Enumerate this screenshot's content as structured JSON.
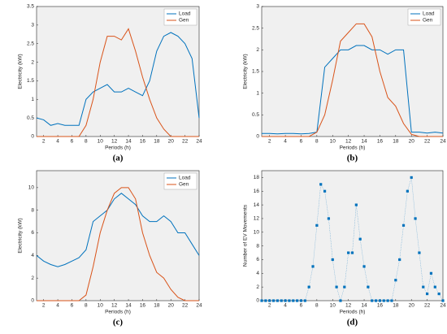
{
  "chart_data": [
    {
      "type": "line",
      "caption": "(a)",
      "ylabel": "Electricity (kW)",
      "xlabel": "Periods (h)",
      "x": [
        1,
        2,
        3,
        4,
        5,
        6,
        7,
        8,
        9,
        10,
        11,
        12,
        13,
        14,
        15,
        16,
        17,
        18,
        19,
        20,
        21,
        22,
        23,
        24
      ],
      "series": [
        {
          "name": "Load",
          "color": "#0072bd",
          "values": [
            0.5,
            0.45,
            0.3,
            0.35,
            0.3,
            0.3,
            0.3,
            1.0,
            1.2,
            1.3,
            1.4,
            1.2,
            1.2,
            1.3,
            1.2,
            1.1,
            1.5,
            2.3,
            2.7,
            2.8,
            2.7,
            2.5,
            2.1,
            0.5
          ]
        },
        {
          "name": "Gen",
          "color": "#d95319",
          "values": [
            0,
            0,
            0,
            0,
            0,
            0,
            0,
            0.3,
            1.0,
            2.0,
            2.7,
            2.7,
            2.6,
            2.9,
            2.3,
            1.6,
            1.0,
            0.5,
            0.2,
            0,
            0,
            0,
            0,
            0
          ]
        }
      ],
      "xlim": [
        1,
        24
      ],
      "xticks": [
        2,
        4,
        6,
        8,
        10,
        12,
        14,
        16,
        18,
        20,
        22,
        24
      ],
      "ylim": [
        0,
        3.5
      ],
      "yticks": [
        0,
        0.5,
        1,
        1.5,
        2,
        2.5,
        3,
        3.5
      ],
      "legend": "upper-right"
    },
    {
      "type": "line",
      "caption": "(b)",
      "ylabel": "Electricity (kW)",
      "xlabel": "Periods (h)",
      "x": [
        1,
        2,
        3,
        4,
        5,
        6,
        7,
        8,
        9,
        10,
        11,
        12,
        13,
        14,
        15,
        16,
        17,
        18,
        19,
        20,
        21,
        22,
        23,
        24
      ],
      "series": [
        {
          "name": "Load",
          "color": "#0072bd",
          "values": [
            0.07,
            0.07,
            0.06,
            0.07,
            0.07,
            0.06,
            0.07,
            0.1,
            1.6,
            1.8,
            2.0,
            2.0,
            2.1,
            2.1,
            2.0,
            2.0,
            1.9,
            2.0,
            2.0,
            0.1,
            0.1,
            0.08,
            0.1,
            0.08
          ]
        },
        {
          "name": "Gen",
          "color": "#d95319",
          "values": [
            0,
            0,
            0,
            0,
            0,
            0,
            0,
            0.1,
            0.5,
            1.3,
            2.2,
            2.4,
            2.6,
            2.6,
            2.3,
            1.5,
            0.9,
            0.7,
            0.3,
            0.05,
            0,
            0,
            0,
            0
          ]
        }
      ],
      "xlim": [
        1,
        24
      ],
      "xticks": [
        2,
        4,
        6,
        8,
        10,
        12,
        14,
        16,
        18,
        20,
        22,
        24
      ],
      "ylim": [
        0,
        3
      ],
      "yticks": [
        0,
        0.5,
        1,
        1.5,
        2,
        2.5,
        3
      ],
      "legend": "upper-right"
    },
    {
      "type": "line",
      "caption": "(c)",
      "ylabel": "Electricity (kW)",
      "xlabel": "Periods (h)",
      "x": [
        1,
        2,
        3,
        4,
        5,
        6,
        7,
        8,
        9,
        10,
        11,
        12,
        13,
        14,
        15,
        16,
        17,
        18,
        19,
        20,
        21,
        22,
        23,
        24
      ],
      "series": [
        {
          "name": "Load",
          "color": "#0072bd",
          "values": [
            4,
            3.5,
            3.2,
            3,
            3.2,
            3.5,
            3.8,
            4.5,
            7,
            7.5,
            8,
            9,
            9.5,
            9,
            8.5,
            7.5,
            7,
            7,
            7.5,
            7,
            6,
            6,
            5,
            4
          ]
        },
        {
          "name": "Gen",
          "color": "#d95319",
          "values": [
            0,
            0,
            0,
            0,
            0,
            0,
            0,
            0.5,
            3,
            6,
            8,
            9.5,
            10,
            10,
            9,
            6,
            4,
            2.5,
            2,
            1,
            0.3,
            0,
            0,
            0
          ]
        }
      ],
      "xlim": [
        1,
        24
      ],
      "xticks": [
        2,
        4,
        6,
        8,
        10,
        12,
        14,
        16,
        18,
        20,
        22,
        24
      ],
      "ylim": [
        0,
        11.5
      ],
      "yticks": [
        0,
        2,
        4,
        6,
        8,
        10
      ],
      "legend": "upper-right"
    },
    {
      "type": "scatter",
      "caption": "(d)",
      "ylabel": "Number of EV Movements",
      "xlabel": "Periods (h)",
      "color": "#0072bd",
      "x": [
        1,
        1.5,
        2,
        2.5,
        3,
        3.5,
        4,
        4.5,
        5,
        5.5,
        6,
        6.5,
        7,
        7.5,
        8,
        8.5,
        9,
        9.5,
        10,
        10.5,
        11,
        11.5,
        12,
        12.5,
        13,
        13.5,
        14,
        14.5,
        15,
        15.5,
        16,
        16.5,
        17,
        17.5,
        18,
        18.5,
        19,
        19.5,
        20,
        20.5,
        21,
        21.5,
        22,
        22.5,
        23,
        23.5,
        24
      ],
      "values": [
        0,
        0,
        0,
        0,
        0,
        0,
        0,
        0,
        0,
        0,
        0,
        0,
        2,
        5,
        11,
        17,
        16,
        12,
        6,
        2,
        0,
        2,
        7,
        7,
        14,
        9,
        5,
        2,
        0,
        0,
        0,
        0,
        0,
        0,
        3,
        6,
        11,
        16,
        18,
        12,
        7,
        2,
        1,
        4,
        2,
        1,
        0
      ],
      "xlim": [
        1,
        24
      ],
      "xticks": [
        2,
        4,
        6,
        8,
        10,
        12,
        14,
        16,
        18,
        20,
        22,
        24
      ],
      "ylim": [
        0,
        19
      ],
      "yticks": [
        0,
        2,
        4,
        6,
        8,
        10,
        12,
        14,
        16,
        18
      ]
    }
  ]
}
